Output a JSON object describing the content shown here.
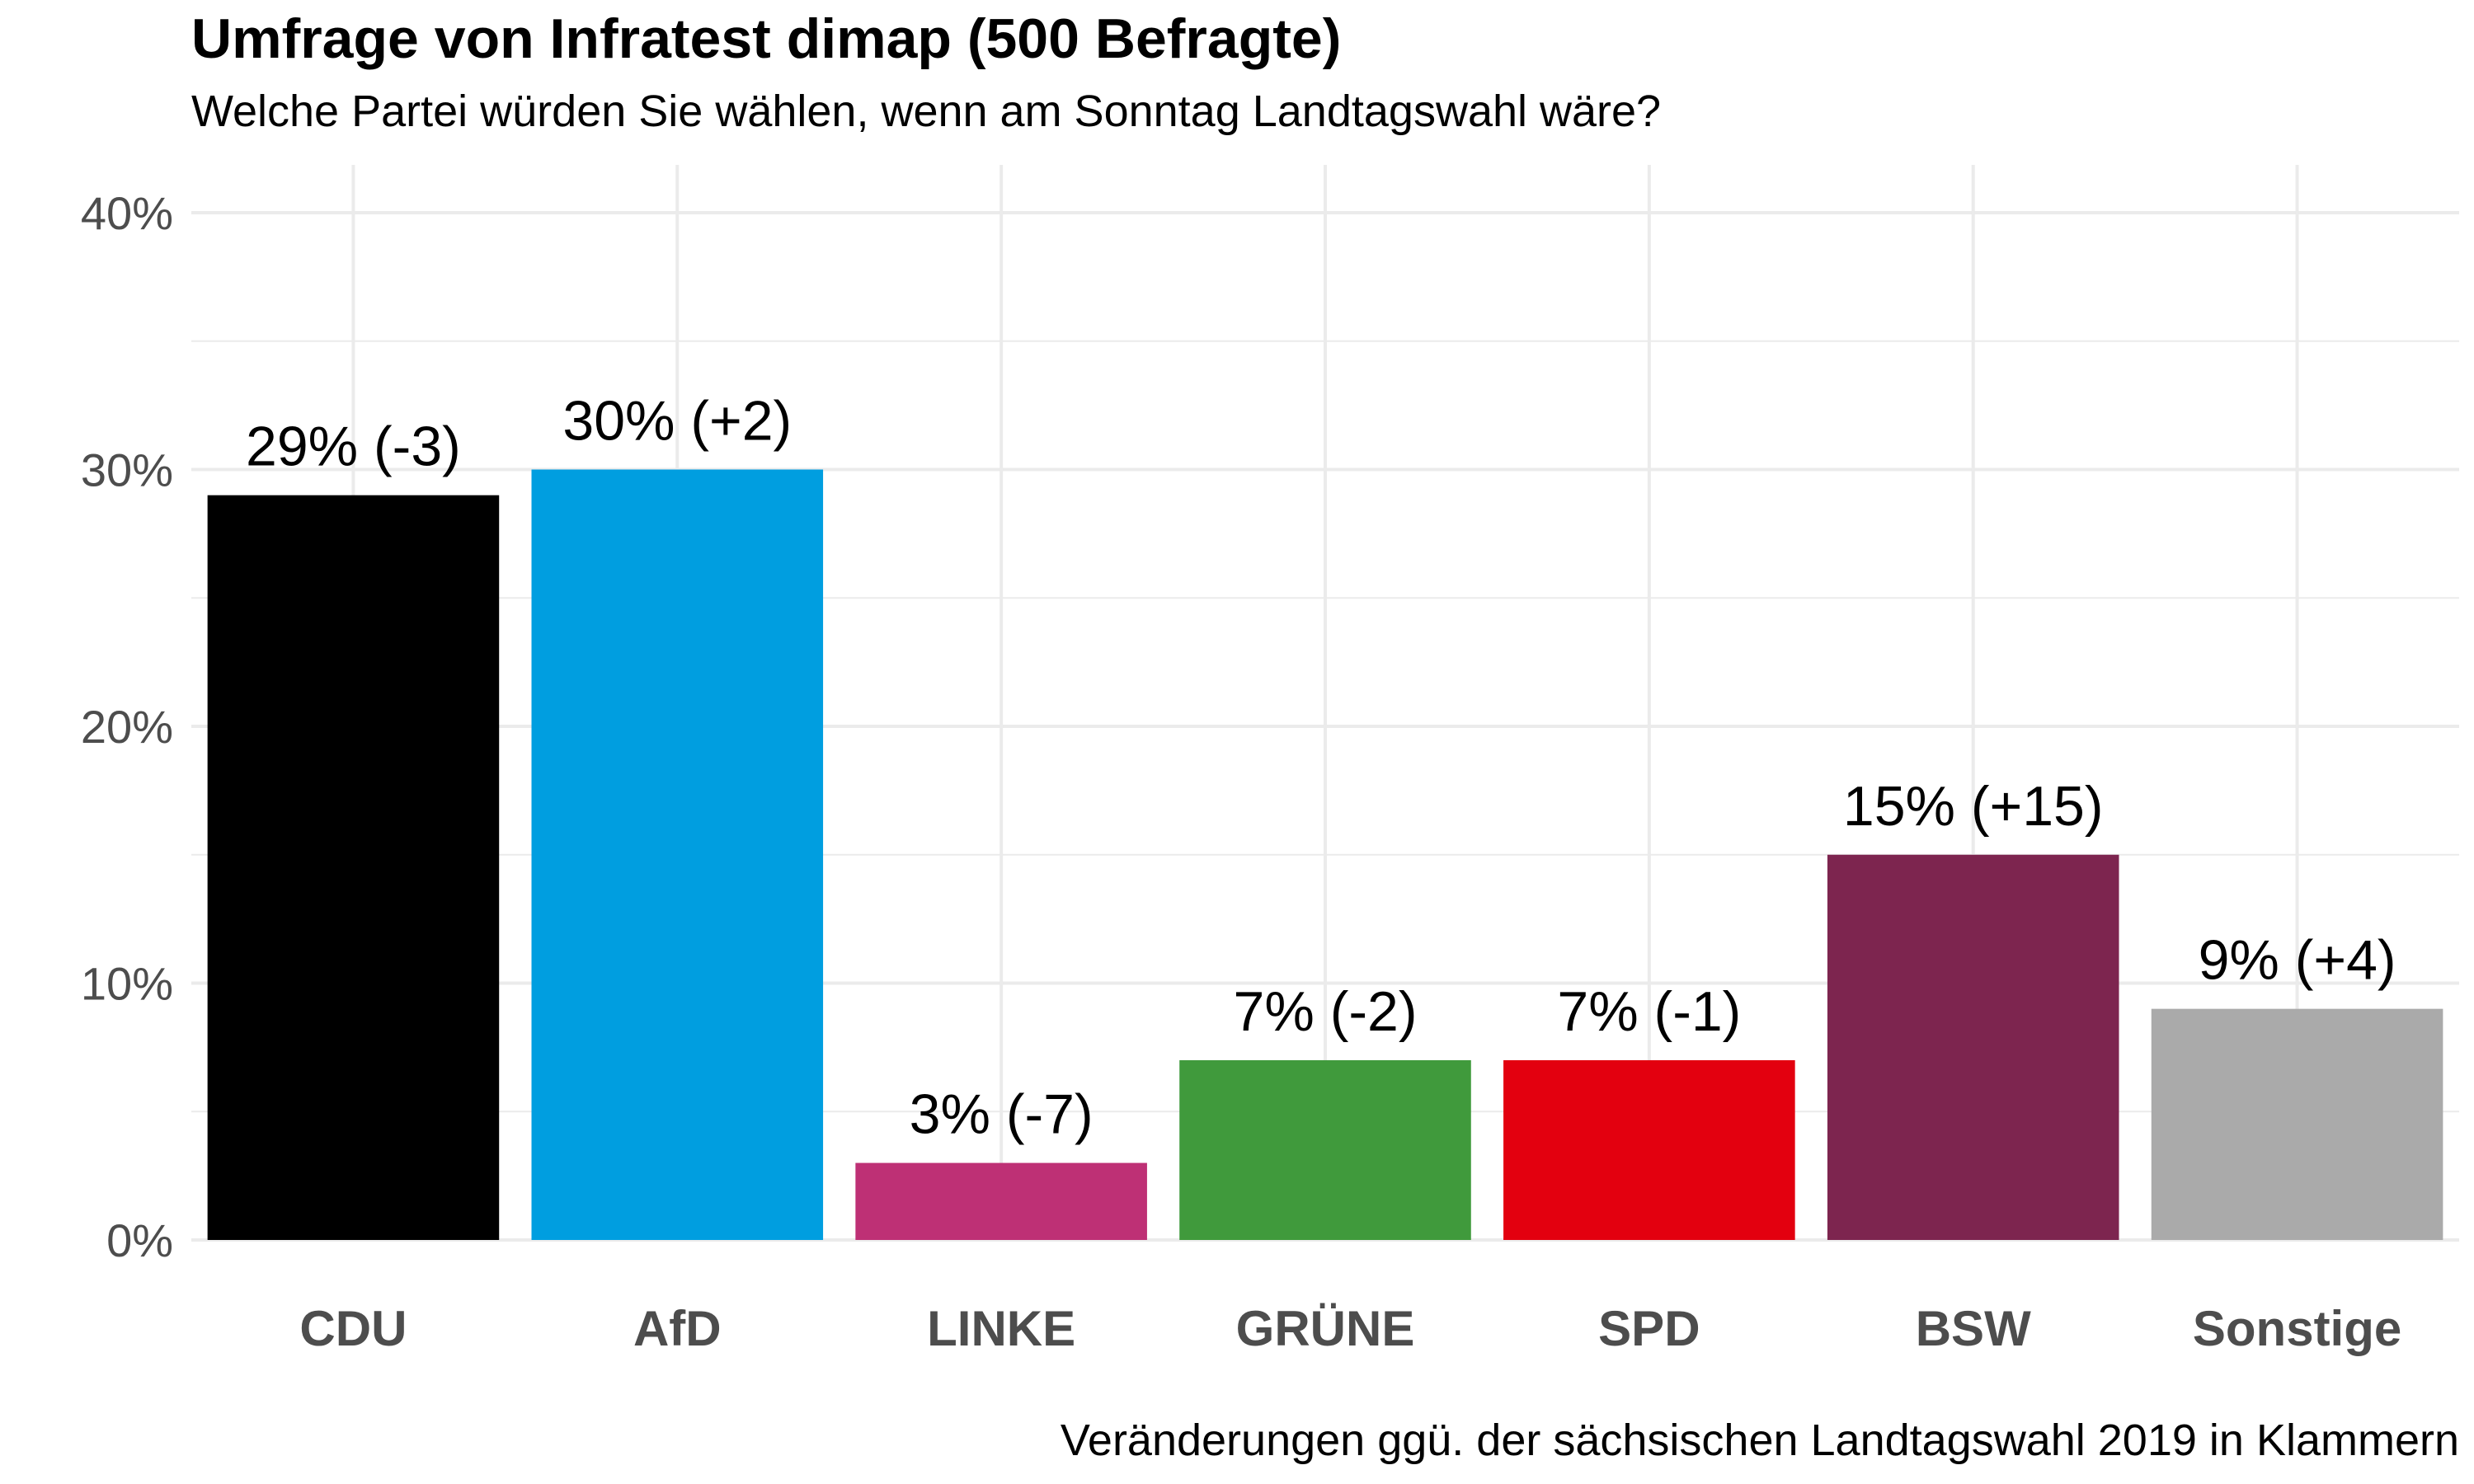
{
  "chart_data": {
    "type": "bar",
    "title": "Umfrage von Infratest dimap (500 Befragte)",
    "subtitle": "Welche Partei würden Sie wählen, wenn am Sonntag Landtagswahl wäre?",
    "caption": "Veränderungen ggü. der sächsischen Landtagswahl 2019 in Klammern",
    "categories": [
      "CDU",
      "AfD",
      "LINKE",
      "GRÜNE",
      "SPD",
      "BSW",
      "Sonstige"
    ],
    "values": [
      29,
      30,
      3,
      7,
      7,
      15,
      9
    ],
    "changes": [
      -3,
      2,
      -7,
      -2,
      -1,
      15,
      4
    ],
    "data_labels": [
      "29% (-3)",
      "30% (+2)",
      "3% (-7)",
      "7% (-2)",
      "7% (-1)",
      "15% (+15)",
      "9% (+4)"
    ],
    "colors": [
      "#000000",
      "#009ee0",
      "#be3075",
      "#409a3c",
      "#e3000f",
      "#7d254f",
      "#aaaaaa"
    ],
    "y_ticks": [
      0,
      10,
      20,
      30,
      40
    ],
    "y_tick_labels": [
      "0%",
      "10%",
      "20%",
      "30%",
      "40%"
    ],
    "ylim": [
      0,
      40
    ],
    "xlabel": "",
    "ylabel": "",
    "grid": true
  }
}
